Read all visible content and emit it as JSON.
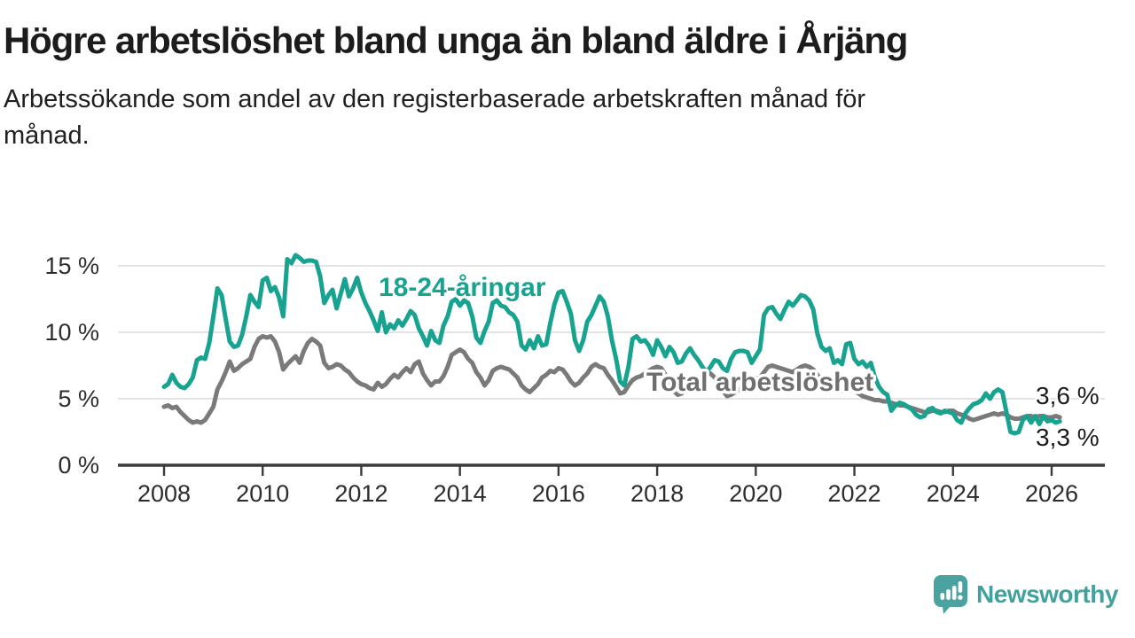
{
  "header": {
    "title": "Högre arbetslöshet bland unga än bland äldre i Årjäng",
    "subtitle_lines": [
      "Arbetssökande som andel av den registerbaserade arbetskraften månad för",
      "månad."
    ]
  },
  "branding": {
    "logo_text": "Newsworthy",
    "logo_color": "#41a19d",
    "logo_icon": "speech-bubble-bar-chart-icon"
  },
  "chart_data": {
    "type": "line",
    "title": "Högre arbetslöshet bland unga än bland äldre i Årjäng",
    "subtitle": "Arbetssökande som andel av den registerbaserade arbetskraften månad för månad.",
    "unit": "%",
    "frequency": "monthly",
    "x_start_year": 2008,
    "x_start_month": 1,
    "x_tick_years": [
      2008,
      2010,
      2012,
      2014,
      2016,
      2018,
      2020,
      2022,
      2024,
      2026
    ],
    "y_ticks": [
      {
        "value": 0,
        "label": "0 %"
      },
      {
        "value": 5,
        "label": "5 %"
      },
      {
        "value": 10,
        "label": "10 %"
      },
      {
        "value": 15,
        "label": "15 %"
      }
    ],
    "ylim": [
      0,
      16.2
    ],
    "grid": "horizontal",
    "legend_position": "inline-labels",
    "colors": {
      "youth": "#17a390",
      "total": "#7a7a7a",
      "grid": "#dcdcdc",
      "axis": "#3b3b3b",
      "tick_text": "#2d2d2d",
      "end_label_text": "#1c1c1c"
    },
    "series": [
      {
        "name": "18-24-åringar",
        "color": "#17a390",
        "end_label": "3,3 %",
        "values": [
          5.9,
          6.1,
          6.8,
          6.2,
          5.9,
          5.8,
          6.1,
          6.6,
          7.9,
          8.1,
          8.0,
          9.2,
          11.2,
          13.3,
          12.8,
          11.0,
          9.3,
          8.9,
          9.0,
          9.8,
          11.2,
          12.8,
          12.3,
          11.9,
          13.9,
          14.1,
          13.1,
          13.4,
          12.6,
          11.2,
          15.5,
          15.2,
          15.8,
          15.6,
          15.3,
          15.4,
          15.4,
          15.3,
          14.2,
          12.2,
          12.8,
          13.2,
          11.8,
          12.9,
          14.0,
          12.7,
          13.3,
          14.1,
          13.0,
          12.2,
          11.6,
          10.9,
          10.1,
          11.5,
          10.0,
          10.6,
          10.3,
          10.9,
          10.5,
          11.0,
          11.6,
          11.3,
          10.3,
          9.7,
          9.0,
          10.1,
          9.4,
          9.2,
          10.5,
          11.2,
          12.3,
          12.5,
          12.0,
          12.4,
          12.2,
          11.2,
          9.6,
          9.2,
          10.1,
          10.8,
          12.2,
          12.4,
          12.0,
          11.9,
          11.5,
          11.3,
          10.8,
          9.0,
          8.7,
          9.4,
          8.8,
          9.7,
          9.0,
          9.1,
          10.7,
          12.1,
          13.0,
          13.1,
          12.3,
          11.4,
          9.4,
          8.6,
          9.4,
          10.8,
          11.3,
          12.0,
          12.7,
          12.3,
          11.2,
          9.4,
          8.0,
          6.3,
          6.0,
          7.4,
          9.5,
          9.7,
          9.3,
          9.4,
          9.0,
          8.3,
          9.4,
          8.9,
          8.2,
          8.9,
          8.5,
          7.7,
          7.8,
          8.4,
          8.8,
          8.3,
          7.9,
          7.4,
          7.0,
          7.4,
          7.9,
          7.8,
          7.3,
          7.1,
          8.0,
          8.5,
          8.6,
          8.6,
          8.5,
          7.7,
          8.2,
          8.7,
          11.3,
          11.8,
          11.9,
          11.4,
          11.0,
          11.7,
          12.3,
          12.0,
          12.4,
          12.8,
          12.7,
          12.4,
          11.7,
          9.9,
          8.9,
          8.6,
          8.8,
          7.7,
          7.9,
          7.6,
          9.1,
          9.2,
          8.0,
          7.6,
          7.8,
          7.4,
          7.7,
          6.6,
          5.9,
          5.5,
          5.3,
          4.1,
          4.5,
          4.7,
          4.6,
          4.4,
          4.2,
          3.8,
          3.6,
          3.7,
          4.2,
          4.3,
          4.0,
          3.9,
          4.1,
          4.0,
          3.9,
          3.4,
          3.2,
          3.9,
          4.3,
          4.6,
          4.7,
          4.9,
          5.4,
          5.0,
          5.5,
          5.7,
          5.5,
          4.0,
          2.5,
          2.4,
          2.5,
          3.4,
          3.7,
          3.2,
          3.7,
          3.1,
          3.7,
          3.3,
          3.4,
          3.2,
          3.3
        ]
      },
      {
        "name": "Total arbetslöshet",
        "color": "#7a7a7a",
        "end_label": "3,6 %",
        "values": [
          4.4,
          4.5,
          4.3,
          4.4,
          4.0,
          3.7,
          3.4,
          3.2,
          3.3,
          3.2,
          3.4,
          3.9,
          4.4,
          5.7,
          6.3,
          7.0,
          7.8,
          7.1,
          7.3,
          7.6,
          7.8,
          8.0,
          8.9,
          9.5,
          9.7,
          9.6,
          9.7,
          9.3,
          8.5,
          7.2,
          7.6,
          7.9,
          8.2,
          7.7,
          8.6,
          9.2,
          9.5,
          9.3,
          9.0,
          7.7,
          7.3,
          7.4,
          7.6,
          7.5,
          7.2,
          7.0,
          6.6,
          6.3,
          6.1,
          6.0,
          5.8,
          5.7,
          6.2,
          5.9,
          6.1,
          6.5,
          6.8,
          6.6,
          7.0,
          7.3,
          7.0,
          7.6,
          7.8,
          6.9,
          6.4,
          6.0,
          6.3,
          6.3,
          6.7,
          7.4,
          8.3,
          8.5,
          8.7,
          8.5,
          8.0,
          7.7,
          7.0,
          6.6,
          6.0,
          6.4,
          7.1,
          7.3,
          7.4,
          7.3,
          7.2,
          6.9,
          6.6,
          6.0,
          5.7,
          5.5,
          5.8,
          6.1,
          6.6,
          6.8,
          7.1,
          7.0,
          7.3,
          7.2,
          6.8,
          6.3,
          6.0,
          6.2,
          6.6,
          6.9,
          7.4,
          7.6,
          7.4,
          7.3,
          6.8,
          6.4,
          5.9,
          5.4,
          5.5,
          6.0,
          6.4,
          6.6,
          6.7,
          6.9,
          7.1,
          7.3,
          7.4,
          7.3,
          6.8,
          6.2,
          5.6,
          5.3,
          5.4,
          5.8,
          6.1,
          6.3,
          6.5,
          6.7,
          6.8,
          6.9,
          6.6,
          6.2,
          5.6,
          5.2,
          5.3,
          5.5,
          5.7,
          5.9,
          6.1,
          6.3,
          6.5,
          6.6,
          7.0,
          7.4,
          7.5,
          7.4,
          7.3,
          7.2,
          7.1,
          7.0,
          7.2,
          7.4,
          7.5,
          7.4,
          7.2,
          6.8,
          6.4,
          6.1,
          5.9,
          5.8,
          5.7,
          5.6,
          5.7,
          5.8,
          5.6,
          5.4,
          5.2,
          5.1,
          5.0,
          4.9,
          4.9,
          4.8,
          4.8,
          4.7,
          4.6,
          4.5,
          4.5,
          4.4,
          4.3,
          4.2,
          4.1,
          4.0,
          4.0,
          4.1,
          4.1,
          4.0,
          4.0,
          4.1,
          4.1,
          3.9,
          3.8,
          3.7,
          3.5,
          3.4,
          3.5,
          3.6,
          3.7,
          3.8,
          3.9,
          3.8,
          3.9,
          3.8,
          3.6,
          3.5,
          3.5,
          3.6,
          3.7,
          3.7,
          3.6,
          3.7,
          3.7,
          3.6,
          3.6,
          3.7,
          3.6
        ]
      }
    ]
  }
}
